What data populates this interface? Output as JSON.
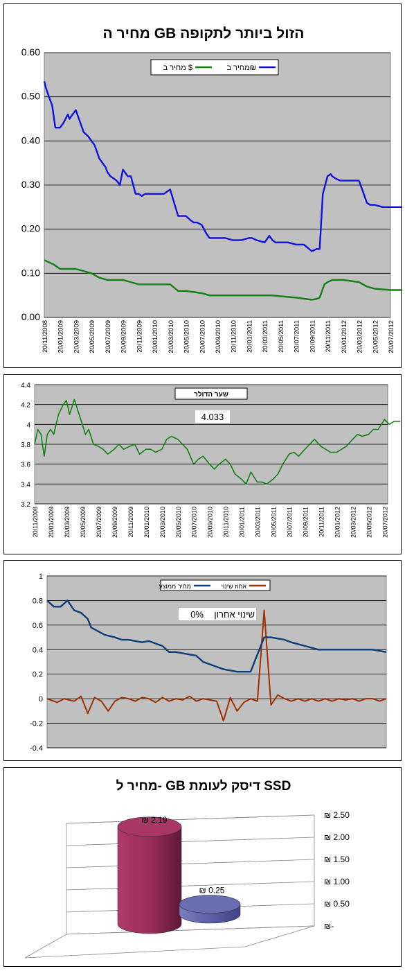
{
  "chart_data": [
    {
      "type": "line",
      "title": "מחיר ה GB הזול ביותר לתקופה",
      "ylim": [
        0,
        0.6
      ],
      "yticks": [
        "0.00",
        "0.10",
        "0.20",
        "0.30",
        "0.40",
        "0.50",
        "0.60"
      ],
      "xticks": [
        "20/11/2008",
        "20/01/2009",
        "20/03/2009",
        "20/05/2009",
        "20/07/2009",
        "20/09/2009",
        "20/11/2009",
        "20/01/2010",
        "20/03/2010",
        "20/05/2010",
        "20/07/2010",
        "20/09/2010",
        "20/11/2010",
        "20/01/2011",
        "20/03/2011",
        "20/05/2011",
        "20/07/2011",
        "20/09/2011",
        "20/11/2011",
        "20/01/2012",
        "20/03/2012",
        "20/05/2012",
        "20/07/2012"
      ],
      "grid": true,
      "legend": "top",
      "colors": {
        "nis": "#1010e0",
        "usd": "#108010"
      },
      "series": [
        {
          "name": "מחיר ב₪",
          "x": [
            0,
            0.1,
            0.3,
            0.5,
            0.7,
            1.0,
            1.2,
            1.5,
            1.6,
            1.8,
            2.0,
            2.3,
            2.5,
            2.8,
            3.0,
            3.2,
            3.5,
            3.7,
            3.9,
            4.0,
            4.2,
            4.4,
            4.6,
            4.8,
            5.0,
            5.3,
            5.5,
            5.8,
            6.0,
            6.2,
            6.4,
            6.6,
            6.8,
            7.0,
            7.3,
            7.6,
            8.0,
            8.5,
            9.0,
            9.3,
            9.5,
            9.7,
            10.0,
            10.3,
            10.5,
            11.0,
            11.2,
            11.5,
            12.0,
            12.5,
            13.0,
            13.2,
            13.5,
            14.0,
            14.3,
            14.5,
            14.7,
            15.0,
            15.5,
            16.0,
            16.5,
            17.0,
            17.3,
            17.5,
            17.7,
            18.0,
            18.2,
            18.3,
            18.5,
            18.8,
            19.0,
            19.5,
            20.0,
            20.3,
            20.5,
            20.7,
            21.0,
            21.5,
            22.0,
            22.5,
            23.0
          ],
          "values": [
            0.535,
            0.52,
            0.5,
            0.48,
            0.43,
            0.43,
            0.44,
            0.46,
            0.45,
            0.46,
            0.47,
            0.44,
            0.42,
            0.41,
            0.4,
            0.39,
            0.36,
            0.35,
            0.34,
            0.33,
            0.32,
            0.315,
            0.31,
            0.3,
            0.335,
            0.32,
            0.32,
            0.28,
            0.28,
            0.275,
            0.28,
            0.28,
            0.28,
            0.28,
            0.28,
            0.28,
            0.29,
            0.23,
            0.23,
            0.22,
            0.215,
            0.215,
            0.21,
            0.19,
            0.18,
            0.18,
            0.18,
            0.18,
            0.175,
            0.175,
            0.18,
            0.18,
            0.175,
            0.17,
            0.185,
            0.175,
            0.17,
            0.17,
            0.17,
            0.165,
            0.165,
            0.15,
            0.155,
            0.155,
            0.28,
            0.32,
            0.325,
            0.32,
            0.315,
            0.31,
            0.31,
            0.31,
            0.31,
            0.28,
            0.26,
            0.255,
            0.255,
            0.25,
            0.25,
            0.25,
            0.25
          ]
        },
        {
          "name": "מחיר ב $",
          "x": [
            0,
            0.3,
            0.6,
            1.0,
            1.5,
            2.0,
            2.5,
            3.0,
            3.5,
            4.0,
            4.5,
            5.0,
            5.5,
            6.0,
            7.0,
            8.0,
            8.5,
            9.0,
            10.0,
            10.5,
            11.0,
            12.0,
            13.0,
            14.0,
            14.5,
            15.0,
            16.0,
            17.0,
            17.3,
            17.5,
            17.8,
            18.0,
            18.3,
            18.5,
            19.0,
            20.0,
            20.5,
            21.0,
            22.0,
            23.0
          ],
          "values": [
            0.13,
            0.125,
            0.12,
            0.11,
            0.11,
            0.11,
            0.105,
            0.1,
            0.09,
            0.085,
            0.085,
            0.085,
            0.08,
            0.075,
            0.075,
            0.075,
            0.06,
            0.06,
            0.055,
            0.05,
            0.05,
            0.05,
            0.05,
            0.05,
            0.05,
            0.048,
            0.045,
            0.04,
            0.042,
            0.045,
            0.075,
            0.08,
            0.085,
            0.085,
            0.085,
            0.08,
            0.07,
            0.065,
            0.062,
            0.062
          ]
        }
      ]
    },
    {
      "type": "line",
      "title": "שער הדולר",
      "annotation": "4.033",
      "ylim": [
        3.2,
        4.4
      ],
      "yticks": [
        "3.2",
        "3.4",
        "3.6",
        "3.8",
        "4",
        "4.2",
        "4.4"
      ],
      "xticks": [
        "20/11/2008",
        "20/01/2009",
        "20/03/2009",
        "20/05/2009",
        "20/07/2009",
        "20/09/2009",
        "20/11/2009",
        "20/01/2010",
        "20/03/2010",
        "20/05/2010",
        "20/07/2010",
        "20/09/2010",
        "20/11/2010",
        "20/01/2011",
        "20/03/2011",
        "20/05/2011",
        "20/07/2011",
        "20/09/2011",
        "20/11/2011",
        "20/01/2012",
        "20/03/2012",
        "20/05/2012",
        "20/07/2012"
      ],
      "grid": true,
      "colors": {
        "line": "#108010"
      },
      "series": [
        {
          "x": [
            0,
            0.2,
            0.4,
            0.6,
            0.8,
            1.0,
            1.2,
            1.5,
            1.8,
            2.0,
            2.2,
            2.5,
            2.8,
            3.0,
            3.2,
            3.4,
            3.7,
            4.0,
            4.3,
            4.6,
            5.0,
            5.3,
            5.6,
            6.0,
            6.3,
            6.6,
            7.0,
            7.3,
            7.6,
            8.0,
            8.3,
            8.6,
            9.0,
            9.3,
            9.6,
            10.0,
            10.3,
            10.6,
            11.0,
            11.3,
            11.6,
            12.0,
            12.3,
            12.6,
            13.0,
            13.3,
            13.6,
            14.0,
            14.3,
            14.6,
            15.0,
            15.3,
            15.6,
            16.0,
            16.3,
            16.6,
            17.0,
            17.3,
            17.6,
            18.0,
            18.3,
            18.6,
            19.0,
            19.3,
            19.6,
            20.0,
            20.3,
            20.6,
            21.0,
            21.3,
            21.6,
            22.0,
            22.3,
            22.6,
            23.0
          ],
          "values": [
            3.8,
            3.95,
            3.9,
            3.68,
            3.9,
            3.95,
            3.9,
            4.1,
            4.2,
            4.24,
            4.1,
            4.25,
            4.1,
            4.0,
            3.9,
            3.95,
            3.8,
            3.78,
            3.75,
            3.7,
            3.75,
            3.8,
            3.75,
            3.78,
            3.8,
            3.7,
            3.75,
            3.75,
            3.72,
            3.75,
            3.85,
            3.88,
            3.85,
            3.8,
            3.75,
            3.6,
            3.65,
            3.68,
            3.6,
            3.55,
            3.6,
            3.65,
            3.6,
            3.5,
            3.45,
            3.4,
            3.52,
            3.42,
            3.42,
            3.4,
            3.45,
            3.5,
            3.6,
            3.7,
            3.72,
            3.68,
            3.75,
            3.8,
            3.85,
            3.78,
            3.75,
            3.72,
            3.72,
            3.75,
            3.78,
            3.85,
            3.9,
            3.88,
            3.9,
            3.95,
            3.95,
            4.05,
            4.0,
            4.03,
            4.03
          ]
        }
      ]
    },
    {
      "type": "line",
      "annotation_label": "שינוי אחרון",
      "annotation_value": "0%",
      "ylim": [
        -0.4,
        1
      ],
      "yticks": [
        "-0.4",
        "-0.2",
        "0",
        "0.2",
        "0.4",
        "0.6",
        "0.8",
        "1"
      ],
      "grid": true,
      "legend": "top",
      "colors": {
        "avg": "#0a3c78",
        "change": "#a03000"
      },
      "series": [
        {
          "name": "מחיר ממוצע",
          "x": [
            0,
            2,
            4,
            6,
            8,
            10,
            12,
            13,
            15,
            17,
            20,
            22,
            24,
            26,
            28,
            30,
            34,
            36,
            38,
            40,
            44,
            46,
            48,
            52,
            56,
            60,
            64,
            66,
            70,
            72,
            76,
            80,
            84,
            86,
            88,
            92,
            96,
            98,
            100
          ],
          "values": [
            0.8,
            0.75,
            0.75,
            0.8,
            0.72,
            0.7,
            0.65,
            0.58,
            0.55,
            0.52,
            0.5,
            0.48,
            0.48,
            0.47,
            0.46,
            0.47,
            0.43,
            0.38,
            0.38,
            0.37,
            0.35,
            0.3,
            0.28,
            0.24,
            0.22,
            0.22,
            0.5,
            0.5,
            0.48,
            0.46,
            0.43,
            0.4,
            0.4,
            0.4,
            0.4,
            0.4,
            0.4,
            0.39,
            0.38
          ]
        },
        {
          "name": "אחוז שינוי",
          "x": [
            0,
            3,
            5,
            8,
            10,
            12,
            14,
            16,
            18,
            20,
            22,
            24,
            26,
            28,
            30,
            32,
            34,
            36,
            38,
            40,
            42,
            44,
            46,
            48,
            50,
            52,
            54,
            56,
            58,
            60,
            62,
            64,
            66,
            68,
            70,
            72,
            74,
            76,
            78,
            80,
            82,
            84,
            86,
            88,
            90,
            92,
            94,
            96,
            98,
            100
          ],
          "values": [
            0,
            -0.03,
            0,
            -0.02,
            0.02,
            -0.12,
            0.01,
            -0.02,
            -0.1,
            -0.02,
            0.01,
            0,
            -0.02,
            0.01,
            0,
            -0.03,
            0.01,
            -0.02,
            0,
            -0.01,
            0.02,
            -0.02,
            0,
            -0.01,
            -0.02,
            -0.18,
            0.01,
            -0.1,
            -0.03,
            0,
            -0.02,
            0.72,
            -0.05,
            0.03,
            0,
            -0.02,
            0,
            -0.02,
            0,
            -0.02,
            0,
            -0.02,
            0,
            -0.01,
            0,
            -0.02,
            0,
            0,
            -0.02,
            0
          ]
        }
      ]
    },
    {
      "type": "bar",
      "title": "מחיר ל- GB דיסק לעומת SSD",
      "values": [
        2.19,
        0.25
      ],
      "data_labels": [
        "₪ 2.19",
        "₪ 0.25"
      ],
      "ylim": [
        0,
        2.5
      ],
      "yticks": [
        "₪-",
        "₪ 0.50",
        "₪ 1.00",
        "₪ 1.50",
        "₪ 2.00",
        "₪ 2.50"
      ],
      "colors": {
        "ssd": "#8b2550",
        "disk": "#5a5ea0"
      }
    }
  ]
}
